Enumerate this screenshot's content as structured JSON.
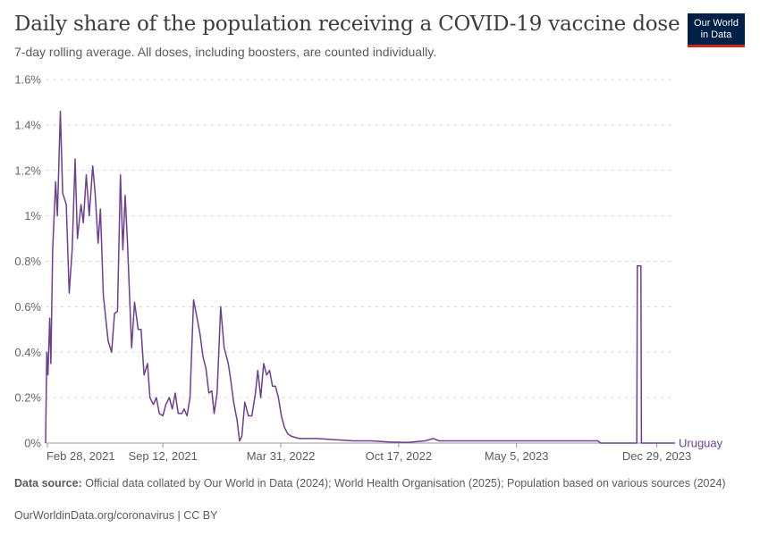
{
  "header": {
    "title": "Daily share of the population receiving a COVID-19 vaccine dose",
    "subtitle": "7-day rolling average. All doses, including boosters, are counted individually.",
    "logo_line1": "Our World",
    "logo_line2": "in Data"
  },
  "footer": {
    "source_label": "Data source:",
    "source_text": "Official data collated by Our World in Data (2024); World Health Organisation (2025); Population based on various sources (2024)",
    "credit": "OurWorldinData.org/coronavirus | CC BY"
  },
  "colors": {
    "series": "#6d3e91",
    "grid": "#dddddd",
    "logo_bg": "#002147",
    "logo_accent": "#ce261e"
  },
  "chart_data": {
    "type": "line",
    "title": "Daily share of the population receiving a COVID-19 vaccine dose",
    "subtitle": "7-day rolling average. All doses, including boosters, are counted individually.",
    "x_axis": {
      "type": "date",
      "range": [
        "2021-02-25",
        "2024-01-29"
      ],
      "tick_labels": [
        "Feb 28, 2021",
        "Sep 12, 2021",
        "Mar 31, 2022",
        "Oct 17, 2022",
        "May 5, 2023",
        "Dec 29, 2023"
      ],
      "tick_dates": [
        "2021-02-28",
        "2021-09-12",
        "2022-03-31",
        "2022-10-17",
        "2023-05-05",
        "2023-12-29"
      ]
    },
    "y_axis": {
      "unit": "%",
      "range": [
        0,
        1.6
      ],
      "tick_values": [
        0,
        0.2,
        0.4,
        0.6,
        0.8,
        1,
        1.2,
        1.4,
        1.6
      ],
      "tick_labels": [
        "0%",
        "0.2%",
        "0.4%",
        "0.6%",
        "0.8%",
        "1%",
        "1.2%",
        "1.4%",
        "1.6%"
      ]
    },
    "grid": "horizontal dashed",
    "series": [
      {
        "name": "Uruguay",
        "color": "#6d3e91",
        "points": [
          [
            "2021-02-25",
            0
          ],
          [
            "2021-02-27",
            0.4
          ],
          [
            "2021-03-01",
            0.3
          ],
          [
            "2021-03-04",
            0.55
          ],
          [
            "2021-03-06",
            0.35
          ],
          [
            "2021-03-09",
            0.85
          ],
          [
            "2021-03-14",
            1.15
          ],
          [
            "2021-03-17",
            1.0
          ],
          [
            "2021-03-22",
            1.46
          ],
          [
            "2021-03-26",
            1.1
          ],
          [
            "2021-04-01",
            1.05
          ],
          [
            "2021-04-06",
            0.66
          ],
          [
            "2021-04-11",
            0.85
          ],
          [
            "2021-04-16",
            1.25
          ],
          [
            "2021-04-20",
            0.9
          ],
          [
            "2021-04-26",
            1.05
          ],
          [
            "2021-04-30",
            0.97
          ],
          [
            "2021-05-05",
            1.18
          ],
          [
            "2021-05-10",
            1.0
          ],
          [
            "2021-05-16",
            1.22
          ],
          [
            "2021-05-20",
            1.1
          ],
          [
            "2021-05-25",
            0.88
          ],
          [
            "2021-05-29",
            1.03
          ],
          [
            "2021-06-03",
            0.65
          ],
          [
            "2021-06-11",
            0.45
          ],
          [
            "2021-06-17",
            0.4
          ],
          [
            "2021-06-22",
            0.57
          ],
          [
            "2021-06-27",
            0.58
          ],
          [
            "2021-07-02",
            1.18
          ],
          [
            "2021-07-06",
            0.85
          ],
          [
            "2021-07-10",
            1.09
          ],
          [
            "2021-07-14",
            0.88
          ],
          [
            "2021-07-21",
            0.42
          ],
          [
            "2021-07-26",
            0.62
          ],
          [
            "2021-08-01",
            0.5
          ],
          [
            "2021-08-06",
            0.5
          ],
          [
            "2021-08-11",
            0.3
          ],
          [
            "2021-08-17",
            0.35
          ],
          [
            "2021-08-21",
            0.2
          ],
          [
            "2021-08-27",
            0.17
          ],
          [
            "2021-09-01",
            0.2
          ],
          [
            "2021-09-06",
            0.13
          ],
          [
            "2021-09-12",
            0.12
          ],
          [
            "2021-09-17",
            0.17
          ],
          [
            "2021-09-23",
            0.2
          ],
          [
            "2021-09-28",
            0.15
          ],
          [
            "2021-10-03",
            0.22
          ],
          [
            "2021-10-08",
            0.13
          ],
          [
            "2021-10-14",
            0.13
          ],
          [
            "2021-10-18",
            0.15
          ],
          [
            "2021-10-23",
            0.12
          ],
          [
            "2021-10-28",
            0.2
          ],
          [
            "2021-11-03",
            0.63
          ],
          [
            "2021-11-09",
            0.55
          ],
          [
            "2021-11-14",
            0.48
          ],
          [
            "2021-11-19",
            0.38
          ],
          [
            "2021-11-24",
            0.33
          ],
          [
            "2021-11-29",
            0.22
          ],
          [
            "2021-12-04",
            0.23
          ],
          [
            "2021-12-08",
            0.13
          ],
          [
            "2021-12-13",
            0.22
          ],
          [
            "2021-12-19",
            0.6
          ],
          [
            "2021-12-25",
            0.42
          ],
          [
            "2022-01-01",
            0.35
          ],
          [
            "2022-01-05",
            0.28
          ],
          [
            "2022-01-10",
            0.18
          ],
          [
            "2022-01-16",
            0.1
          ],
          [
            "2022-01-20",
            0.01
          ],
          [
            "2022-01-24",
            0.03
          ],
          [
            "2022-01-29",
            0.18
          ],
          [
            "2022-02-04",
            0.12
          ],
          [
            "2022-02-10",
            0.12
          ],
          [
            "2022-02-16",
            0.22
          ],
          [
            "2022-02-20",
            0.32
          ],
          [
            "2022-02-25",
            0.2
          ],
          [
            "2022-03-02",
            0.35
          ],
          [
            "2022-03-07",
            0.3
          ],
          [
            "2022-03-12",
            0.32
          ],
          [
            "2022-03-17",
            0.25
          ],
          [
            "2022-03-22",
            0.25
          ],
          [
            "2022-03-27",
            0.2
          ],
          [
            "2022-04-01",
            0.12
          ],
          [
            "2022-04-06",
            0.07
          ],
          [
            "2022-04-12",
            0.04
          ],
          [
            "2022-04-18",
            0.03
          ],
          [
            "2022-05-01",
            0.02
          ],
          [
            "2022-06-01",
            0.02
          ],
          [
            "2022-07-01",
            0.015
          ],
          [
            "2022-08-01",
            0.01
          ],
          [
            "2022-09-01",
            0.01
          ],
          [
            "2022-10-01",
            0.005
          ],
          [
            "2022-11-01",
            0.003
          ],
          [
            "2022-12-01",
            0.01
          ],
          [
            "2022-12-15",
            0.02
          ],
          [
            "2022-12-25",
            0.01
          ],
          [
            "2023-03-01",
            0.01
          ],
          [
            "2023-06-01",
            0.01
          ],
          [
            "2023-09-20",
            0.01
          ],
          [
            "2023-09-25",
            0.0
          ],
          [
            "2023-11-25",
            0.0
          ],
          [
            "2023-11-26",
            0.78
          ],
          [
            "2023-12-02",
            0.78
          ],
          [
            "2023-12-03",
            0.0
          ],
          [
            "2024-01-29",
            0.0
          ]
        ]
      }
    ]
  }
}
